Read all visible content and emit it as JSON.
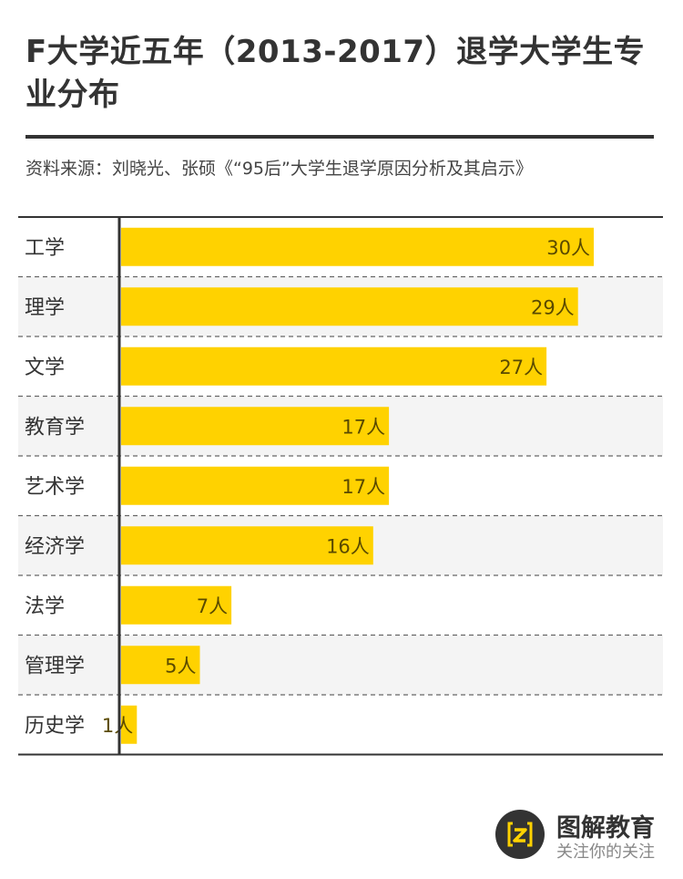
{
  "header": {
    "title": "F大学近五年（2013-2017）退学大学生专业分布",
    "source": "资料来源：刘晓光、张硕《“95后”大学生退学原因分析及其启示》"
  },
  "footer": {
    "brand": "图解教育",
    "slogan": "关注你的关注"
  },
  "colors": {
    "bar": "#ffd200",
    "axis": "#333333",
    "stripe": "#f4f4f4",
    "text": "#333333"
  },
  "chart_data": {
    "type": "bar",
    "orientation": "horizontal",
    "categories": [
      "工学",
      "理学",
      "文学",
      "教育学",
      "艺术学",
      "经济学",
      "法学",
      "管理学",
      "历史学"
    ],
    "values": [
      30,
      29,
      27,
      17,
      17,
      16,
      7,
      5,
      1
    ],
    "data_labels": [
      "30人",
      "29人",
      "27人",
      "17人",
      "17人",
      "16人",
      "7人",
      "5人",
      "1人"
    ],
    "unit": "人",
    "xlim": [
      0,
      30
    ],
    "grid": false,
    "legend": "none"
  }
}
